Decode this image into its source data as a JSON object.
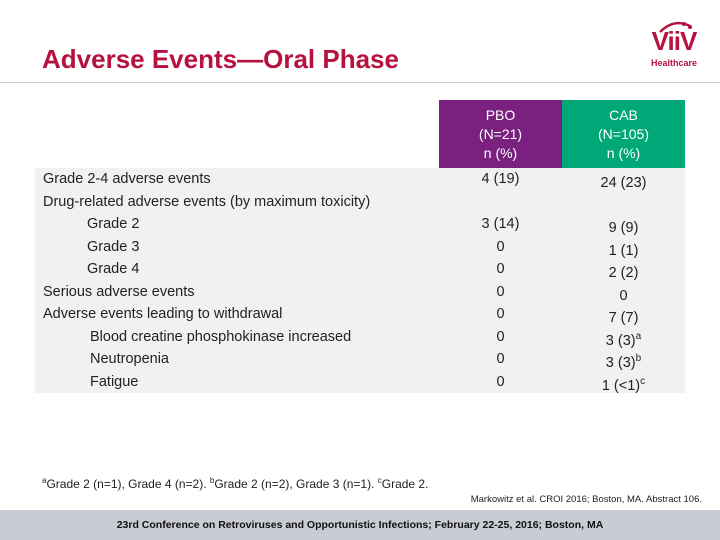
{
  "slide": {
    "title": "Adverse Events—Oral Phase",
    "logo": {
      "word": "ViiV",
      "sub": "Healthcare",
      "color": "#b5123f"
    }
  },
  "table": {
    "columns": [
      {
        "line1": "PBO",
        "line2": "(N=21)",
        "line3": "n (%)",
        "color": "#7a2180"
      },
      {
        "line1": "CAB",
        "line2": "(N=105)",
        "line3": "n (%)",
        "color": "#00a878"
      }
    ],
    "rows": [
      {
        "label": "Grade 2-4 adverse events",
        "pbo": "4 (19)",
        "cab": "24 (23)",
        "cab_sup": ""
      },
      {
        "label": "Drug-related adverse events (by maximum toxicity)",
        "pbo": "",
        "cab": "",
        "cab_sup": ""
      },
      {
        "label": "Grade 2",
        "pbo": "3 (14)",
        "cab": "9 (9)",
        "cab_sup": ""
      },
      {
        "label": "Grade 3",
        "pbo": "0",
        "cab": "1 (1)",
        "cab_sup": ""
      },
      {
        "label": "Grade 4",
        "pbo": "0",
        "cab": "2 (2)",
        "cab_sup": ""
      },
      {
        "label": "Serious adverse events",
        "pbo": "0",
        "cab": "0",
        "cab_sup": ""
      },
      {
        "label": "Adverse events leading to withdrawal",
        "pbo": "0",
        "cab": "7 (7)",
        "cab_sup": ""
      },
      {
        "label": "Blood creatine phosphokinase increased",
        "pbo": "0",
        "cab": "3 (3)",
        "cab_sup": "a"
      },
      {
        "label": "Neutropenia",
        "pbo": "0",
        "cab": "3 (3)",
        "cab_sup": "b"
      },
      {
        "label": "Fatigue",
        "pbo": "0",
        "cab": "1 (<1)",
        "cab_sup": "c"
      }
    ]
  },
  "footnote": {
    "a_mark": "a",
    "a_text": "Grade 2 (n=1), Grade 4 (n=2). ",
    "b_mark": "b",
    "b_text": "Grade 2 (n=2), Grade 3 (n=1). ",
    "c_mark": "c",
    "c_text": "Grade 2."
  },
  "citation": "Markowitz et al. CROI 2016; Boston, MA. Abstract 106.",
  "conference": "23rd Conference on Retroviruses and Opportunistic Infections; February 22-25, 2016; Boston, MA"
}
